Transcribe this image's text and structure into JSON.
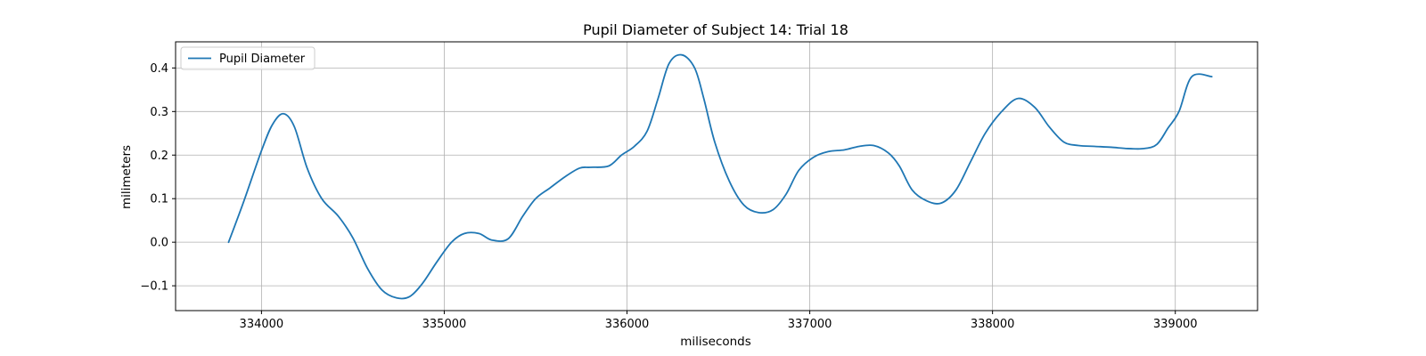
{
  "chart_data": {
    "type": "line",
    "title": "Pupil Diameter of Subject 14: Trial 18",
    "xlabel": "miliseconds",
    "ylabel": "milimeters",
    "xlim": [
      333530,
      339450
    ],
    "ylim": [
      -0.157,
      0.46
    ],
    "xticks": [
      334000,
      335000,
      336000,
      337000,
      338000,
      339000
    ],
    "yticks": [
      -0.1,
      0.0,
      0.1,
      0.2,
      0.3,
      0.4
    ],
    "xtick_labels": [
      "334000",
      "335000",
      "336000",
      "337000",
      "338000",
      "339000"
    ],
    "ytick_labels": [
      "−0.1",
      "0.0",
      "0.1",
      "0.2",
      "0.3",
      "0.4"
    ],
    "grid": true,
    "legend_position": "upper-left",
    "color": "#1f77b4",
    "series": [
      {
        "name": "Pupil Diameter",
        "x": [
          333820,
          333900,
          334000,
          334060,
          334120,
          334180,
          334250,
          334330,
          334420,
          334500,
          334580,
          334660,
          334740,
          334810,
          334880,
          334960,
          335040,
          335110,
          335190,
          335260,
          335350,
          335430,
          335500,
          335580,
          335660,
          335740,
          335800,
          335900,
          335970,
          336040,
          336110,
          336170,
          336230,
          336300,
          336370,
          336420,
          336480,
          336560,
          336640,
          336720,
          336800,
          336870,
          336940,
          337020,
          337100,
          337190,
          337270,
          337350,
          337430,
          337490,
          337560,
          337640,
          337720,
          337800,
          337880,
          337960,
          338050,
          338140,
          338230,
          338310,
          338390,
          338470,
          338560,
          338650,
          338740,
          338830,
          338900,
          338960,
          339020,
          339090,
          339200
        ],
        "y": [
          0.0,
          0.09,
          0.21,
          0.27,
          0.295,
          0.265,
          0.17,
          0.1,
          0.06,
          0.01,
          -0.06,
          -0.11,
          -0.128,
          -0.125,
          -0.095,
          -0.045,
          0.0,
          0.02,
          0.02,
          0.005,
          0.008,
          0.06,
          0.1,
          0.125,
          0.15,
          0.17,
          0.172,
          0.175,
          0.2,
          0.22,
          0.255,
          0.33,
          0.41,
          0.43,
          0.4,
          0.33,
          0.23,
          0.14,
          0.085,
          0.068,
          0.075,
          0.11,
          0.165,
          0.195,
          0.208,
          0.212,
          0.22,
          0.222,
          0.205,
          0.175,
          0.12,
          0.095,
          0.09,
          0.12,
          0.185,
          0.25,
          0.3,
          0.33,
          0.31,
          0.265,
          0.23,
          0.222,
          0.22,
          0.218,
          0.215,
          0.215,
          0.225,
          0.262,
          0.3,
          0.38,
          0.38
        ]
      }
    ]
  }
}
